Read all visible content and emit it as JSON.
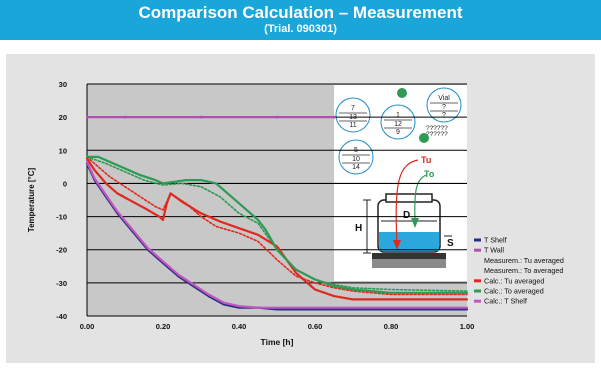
{
  "header": {
    "title": "Comparison Calculation – Measurement",
    "subtitle": "(Trial. 090301)"
  },
  "colors": {
    "banner": "#1aa6d9",
    "panel": "#e3e3e3",
    "plot_bg": "#c8c8c8"
  },
  "chart_data": {
    "type": "line",
    "xlabel": "Time [h]",
    "ylabel": "Temperature [°C]",
    "xlim": [
      0,
      1
    ],
    "ylim": [
      -40,
      30
    ],
    "x_ticks": [
      "0.00",
      "0.20",
      "0.40",
      "0.60",
      "0.80",
      "1.00"
    ],
    "x_tick_values": [
      0,
      0.2,
      0.4,
      0.6,
      0.8,
      1.0
    ],
    "y_ticks": [
      "30",
      "20",
      "10",
      "0",
      "-10",
      "-20",
      "-30",
      "-40"
    ],
    "y_tick_values": [
      30,
      20,
      10,
      0,
      -10,
      -20,
      -30,
      -40
    ],
    "grid": "horizontal",
    "legend_position": "right",
    "series": [
      {
        "name": "T Shelf",
        "color": "#2b2f86",
        "style": "solid",
        "x": [
          0,
          0.02,
          0.05,
          0.08,
          0.12,
          0.16,
          0.2,
          0.24,
          0.28,
          0.32,
          0.36,
          0.38,
          0.4,
          0.45,
          0.5,
          0.6,
          0.7,
          0.8,
          0.9,
          1.0
        ],
        "y": [
          6,
          1,
          -4,
          -9,
          -14.5,
          -20,
          -24,
          -28,
          -31,
          -34,
          -36.5,
          -37,
          -37.5,
          -37.5,
          -38,
          -38,
          -38,
          -38,
          -38,
          -38
        ]
      },
      {
        "name": "T Wall",
        "color": "#b34fb0",
        "style": "solid",
        "x": [
          0,
          0.1,
          0.2,
          0.3,
          0.4,
          0.5,
          0.6,
          0.65
        ],
        "y": [
          20,
          20,
          20,
          20,
          20,
          20,
          20,
          20
        ]
      },
      {
        "name": "Measurem.: Tu averaged",
        "color": "#e0281e",
        "style": "dotted",
        "x": [
          0,
          0.03,
          0.06,
          0.1,
          0.14,
          0.18,
          0.2,
          0.22,
          0.26,
          0.3,
          0.34,
          0.4,
          0.45,
          0.5,
          0.55,
          0.6,
          0.65,
          0.7,
          0.75,
          0.8,
          1.0
        ],
        "y": [
          8,
          5,
          2,
          -1,
          -4,
          -7,
          -8,
          -3,
          -6,
          -10,
          -13,
          -15,
          -17.5,
          -23,
          -28,
          -30,
          -31.5,
          -32.5,
          -33,
          -33.5,
          -33.5
        ]
      },
      {
        "name": "Measurem.: To averaged",
        "color": "#2e9a54",
        "style": "dotted",
        "x": [
          0,
          0.05,
          0.1,
          0.15,
          0.2,
          0.25,
          0.3,
          0.35,
          0.4,
          0.45,
          0.5,
          0.55,
          0.6,
          0.65,
          0.7,
          0.8,
          1.0
        ],
        "y": [
          8,
          6,
          3.5,
          1,
          -0.5,
          0,
          -1,
          -4,
          -9,
          -12,
          -20,
          -26,
          -29,
          -30.5,
          -31.5,
          -32,
          -32.5
        ]
      },
      {
        "name": "Calc.: Tu averaged",
        "color": "#e0281e",
        "style": "solid",
        "x": [
          0,
          0.02,
          0.05,
          0.08,
          0.12,
          0.16,
          0.19,
          0.2,
          0.21,
          0.22,
          0.25,
          0.3,
          0.35,
          0.4,
          0.45,
          0.5,
          0.55,
          0.6,
          0.65,
          0.7,
          0.75,
          0.8,
          0.9,
          1.0
        ],
        "y": [
          7.5,
          4,
          0,
          -3,
          -5.5,
          -8,
          -10,
          -11,
          -6,
          -3,
          -5.5,
          -9,
          -11.5,
          -13.5,
          -15.5,
          -19,
          -27,
          -32,
          -34,
          -35,
          -35,
          -35,
          -35,
          -35
        ]
      },
      {
        "name": "Calc.: To averaged",
        "color": "#2e9a54",
        "style": "solid",
        "x": [
          0,
          0.03,
          0.06,
          0.1,
          0.14,
          0.18,
          0.2,
          0.23,
          0.26,
          0.3,
          0.34,
          0.38,
          0.42,
          0.45,
          0.47,
          0.5,
          0.55,
          0.6,
          0.65,
          0.7,
          0.8,
          0.9,
          1.0
        ],
        "y": [
          8,
          8,
          6.5,
          4.5,
          2.5,
          1,
          0,
          0.5,
          1,
          1,
          0,
          -4,
          -8,
          -11,
          -14,
          -20,
          -26,
          -29,
          -31,
          -32,
          -33,
          -33,
          -33
        ]
      },
      {
        "name": "Calc.: T Shelf",
        "color": "#c256c0",
        "style": "solid",
        "x": [
          0,
          0.02,
          0.05,
          0.08,
          0.12,
          0.16,
          0.2,
          0.24,
          0.28,
          0.32,
          0.36,
          0.38,
          0.4,
          0.45,
          0.5,
          0.6,
          0.7,
          0.8,
          0.9,
          1.0
        ],
        "y": [
          6.5,
          1.5,
          -3.5,
          -8.5,
          -14,
          -19.5,
          -23.5,
          -27.5,
          -30.5,
          -33.5,
          -36,
          -36.5,
          -37,
          -37.5,
          -37.5,
          -37.5,
          -37.5,
          -37.5,
          -37.5,
          -37.5
        ]
      }
    ],
    "legend": [
      {
        "label": "T Shelf",
        "color": "#2b2f86",
        "swatch": true
      },
      {
        "label": "T Wall",
        "color": "#b34fb0",
        "swatch": true
      },
      {
        "label": "Measurem.: Tu averaged",
        "color": "",
        "swatch": false
      },
      {
        "label": "Measurem.: To averaged",
        "color": "",
        "swatch": false
      },
      {
        "label": "Calc.: Tu averaged",
        "color": "#e0281e",
        "swatch": true
      },
      {
        "label": "Calc.: To averaged",
        "color": "#2e9a54",
        "swatch": true
      },
      {
        "label": "Calc.: T Shelf",
        "color": "#c256c0",
        "swatch": true
      }
    ]
  },
  "inset": {
    "vials": [
      {
        "lines": [
          "7",
          "13",
          "11"
        ]
      },
      {
        "lines": [
          "1",
          "12",
          "9"
        ]
      },
      {
        "lines": [
          "Vial",
          "?",
          "?"
        ]
      },
      {
        "lines": [
          "5",
          "10",
          "14"
        ]
      }
    ],
    "unknown_a": "??????",
    "unknown_b": "??????",
    "label_tu": "Tu",
    "label_to": "To",
    "label_d": "D",
    "label_h": "H",
    "label_s": "S"
  }
}
